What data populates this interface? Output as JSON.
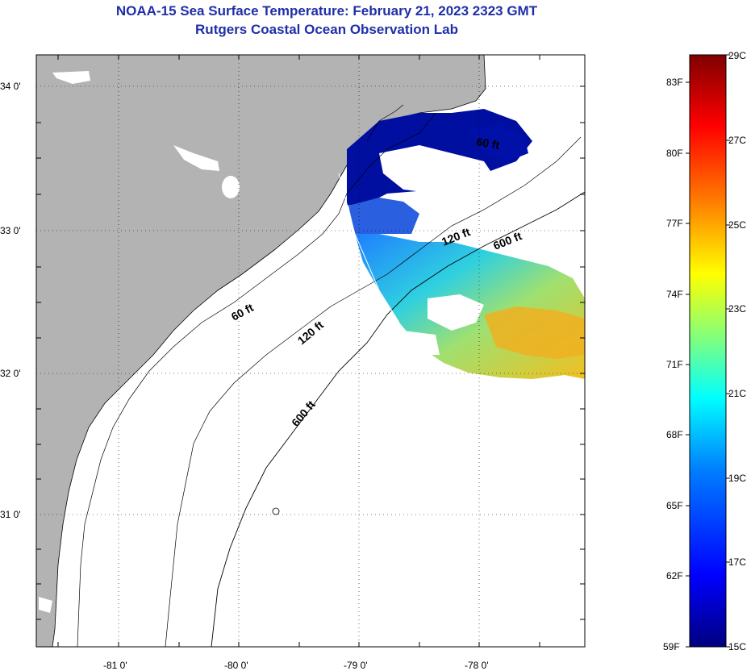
{
  "title": "NOAA-15 Sea Surface Temperature:  February 21, 2023 2323 GMT",
  "subtitle": "Rutgers Coastal Ocean Observation Lab",
  "map": {
    "lon_ticks": [
      "-81 0'",
      "-80 0'",
      "-79 0'",
      "-78 0'"
    ],
    "lat_ticks": [
      "34 0'",
      "33 0'",
      "32 0'",
      "31 0'"
    ],
    "land_color": "#b3b3b3",
    "ocean_color": "#ffffff",
    "contours": [
      {
        "label": "60 ft"
      },
      {
        "label": "120 ft"
      },
      {
        "label": "600 ft"
      },
      {
        "label": "60 ft"
      },
      {
        "label": "120 ft"
      },
      {
        "label": "600 ft"
      }
    ]
  },
  "colorbar": {
    "celsius_labels": [
      "29C",
      "27C",
      "25C",
      "23C",
      "21C",
      "19C",
      "17C",
      "15C"
    ],
    "fahrenheit_labels": [
      "83F",
      "80F",
      "77F",
      "74F",
      "71F",
      "68F",
      "65F",
      "62F",
      "59F"
    ],
    "colors": [
      "#00007f",
      "#0000ff",
      "#007fff",
      "#00ffff",
      "#7fff7f",
      "#ffff00",
      "#ff7f00",
      "#ff0000",
      "#7f0000"
    ]
  }
}
